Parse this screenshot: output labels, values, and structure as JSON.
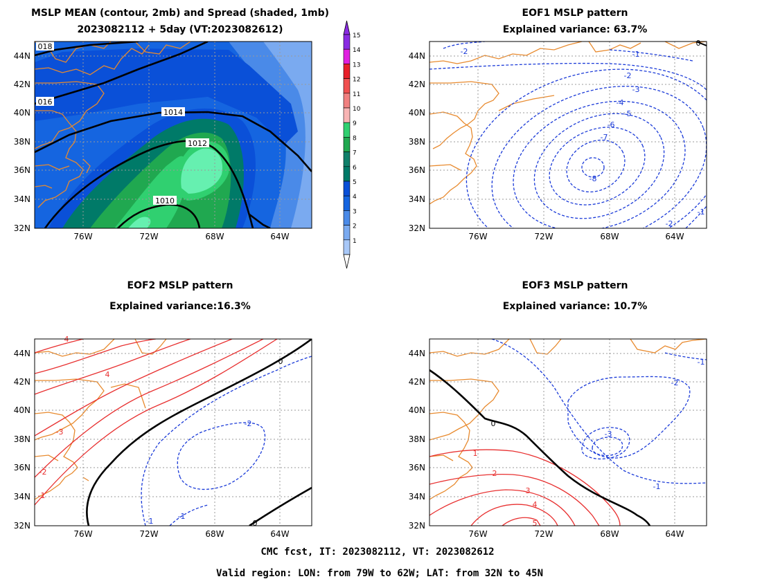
{
  "panels": {
    "mean": {
      "title1": "MSLP MEAN (contour, 2mb) and Spread (shaded, 1mb)",
      "title2": "2023082112 + 5day (VT:2023082612)",
      "contour_labels": [
        "018",
        "016",
        "1014",
        "1012",
        "1010"
      ]
    },
    "eof1": {
      "title1": "EOF1 MSLP pattern",
      "title2": "Explained variance: 63.7%",
      "contour_labels": [
        "-1",
        "-2",
        "-3",
        "-4",
        "-5",
        "-6",
        "-7",
        "-8",
        "-2",
        "-2",
        "-1",
        "0"
      ]
    },
    "eof2": {
      "title1": "EOF2 MSLP pattern",
      "title2": "Explained variance:16.3%",
      "contour_labels": [
        "4",
        "-3",
        "-2",
        "-1",
        "0",
        "-2",
        "-1",
        "-1",
        "0",
        "4"
      ]
    },
    "eof3": {
      "title1": "EOF3 MSLP pattern",
      "title2": "Explained variance: 10.7%",
      "contour_labels": [
        "0",
        "-1",
        "-2",
        "-3",
        "-1",
        "1",
        "2",
        "3",
        "4",
        "5"
      ]
    }
  },
  "axes": {
    "lat_labels": [
      "44N",
      "42N",
      "40N",
      "38N",
      "36N",
      "34N",
      "32N"
    ],
    "lon_labels": [
      "76W",
      "72W",
      "68W",
      "64W"
    ]
  },
  "colorbar": {
    "levels": [
      "15",
      "14",
      "13",
      "12",
      "11",
      "10",
      "9",
      "8",
      "7",
      "6",
      "5",
      "4",
      "3",
      "2",
      "1"
    ],
    "colors": [
      "#8a2be2",
      "#e020e0",
      "#e8202a",
      "#f05050",
      "#f08080",
      "#f8b4b4",
      "#30d070",
      "#20a850",
      "#10806a",
      "#007a68",
      "#0a50d8",
      "#1565e0",
      "#4a8ae8",
      "#7aaaf0",
      "#a8c8f8"
    ]
  },
  "footer": {
    "line1": "CMC fcst, IT: 2023082112, VT: 2023082612",
    "line2": "Valid region: LON: from 79W to 62W; LAT: from 32N to 45N"
  },
  "colors": {
    "coast": "#e88a2e",
    "negative_contour": "#1a3ad8",
    "positive_contour": "#e83030",
    "zero_contour": "#000000"
  }
}
